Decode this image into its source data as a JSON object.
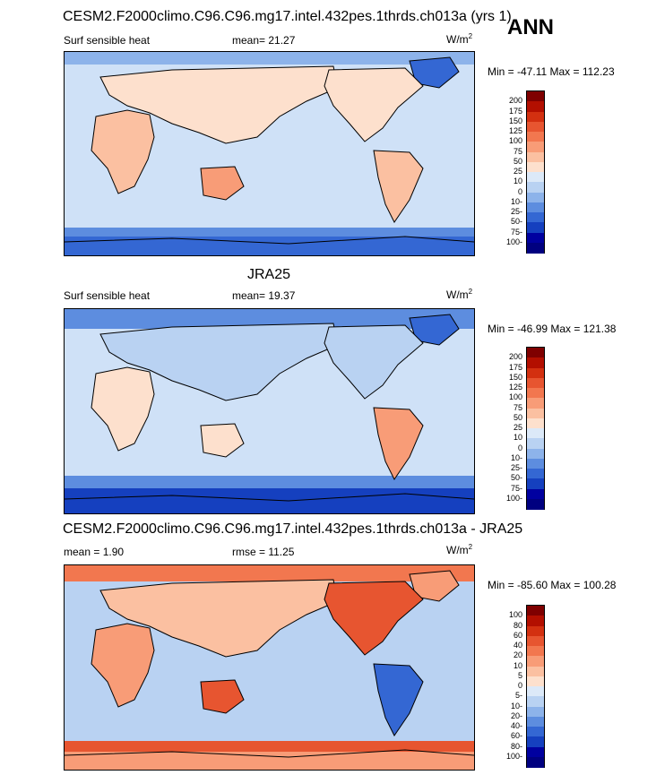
{
  "season": "ANN",
  "panels": [
    {
      "title": "CESM2.F2000climo.C96.C96.mg17.intel.432pes.1thrds.ch013a (yrs 1)",
      "left_label": "Surf sensible heat",
      "center_label": "mean=  21.27",
      "units": "W/m",
      "units_sup": "2",
      "minmax": "Min = -47.11 Max = 112.23",
      "colorbar_levels": [
        "200",
        "175",
        "150",
        "125",
        "100",
        "75",
        "50",
        "25",
        "10",
        "0",
        "-10",
        "-25",
        "-50",
        "-75",
        "-100"
      ]
    },
    {
      "title": "JRA25",
      "left_label": "Surf sensible heat",
      "center_label": "mean=  19.37",
      "units": "W/m",
      "units_sup": "2",
      "minmax": "Min = -46.99 Max = 121.38",
      "colorbar_levels": [
        "200",
        "175",
        "150",
        "125",
        "100",
        "75",
        "50",
        "25",
        "10",
        "0",
        "-10",
        "-25",
        "-50",
        "-75",
        "-100"
      ]
    },
    {
      "title": "CESM2.F2000climo.C96.C96.mg17.intel.432pes.1thrds.ch013a - JRA25",
      "left_label": "mean =   1.90",
      "center_label": "rmse =  11.25",
      "units": "W/m",
      "units_sup": "2",
      "minmax": "Min = -85.60 Max = 100.28",
      "colorbar_levels": [
        "100",
        "80",
        "60",
        "40",
        "20",
        "10",
        "5",
        "0",
        "-5",
        "-10",
        "-20",
        "-40",
        "-60",
        "-80",
        "-100"
      ]
    }
  ],
  "colors": {
    "abs_scale": [
      "#7f0000",
      "#b30f00",
      "#d33010",
      "#e75530",
      "#f2774f",
      "#f89c77",
      "#fbc0a1",
      "#fde0cd",
      "#dce9f8",
      "#b9d2f2",
      "#8db3ea",
      "#5d8ddf",
      "#3467d3",
      "#1540bf",
      "#0000a0",
      "#000080"
    ],
    "diff_scale": [
      "#7f0000",
      "#b30f00",
      "#d33010",
      "#e75530",
      "#f2774f",
      "#f89c77",
      "#fbc0a1",
      "#fde0cd",
      "#dce9f8",
      "#b9d2f2",
      "#8db3ea",
      "#5d8ddf",
      "#3467d3",
      "#1540bf",
      "#0000a0",
      "#000080"
    ],
    "ocean_abs": "#cfe1f7",
    "coast": "#000000"
  }
}
